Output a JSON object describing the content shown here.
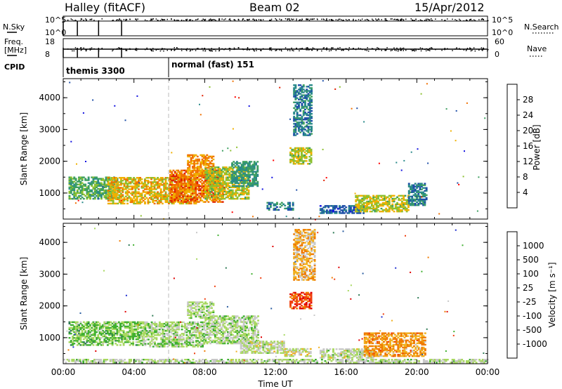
{
  "header": {
    "site": "Halley (fitACF)",
    "beam": "Beam 02",
    "date": "15/Apr/2012"
  },
  "status_panels": {
    "nsky": {
      "label": "N.Sky",
      "ticks_left": [
        "10^5",
        "10^0"
      ],
      "right_label": "N.Search",
      "ticks_right": [
        "10^5",
        "10^0"
      ]
    },
    "freq": {
      "label_top": "Freq.",
      "label_bottom": "[MHz]",
      "ticks_left": [
        "18",
        "8"
      ],
      "right_label": "Nave",
      "ticks_right": [
        "60",
        "0"
      ]
    },
    "cpid": {
      "label": "CPID",
      "modes": [
        {
          "text": "themis 3300",
          "start_hour": 0
        },
        {
          "text": "normal (fast) 151",
          "start_hour": 6
        }
      ]
    },
    "scan_markers_hours": [
      0,
      0.8,
      2.0,
      3.3
    ]
  },
  "colors": {
    "power_scale": [
      "#1010e0",
      "#1f4fa8",
      "#2a8a8a",
      "#3ea060",
      "#8cc030",
      "#f0b000",
      "#f07000",
      "#e02000",
      "#ff0000"
    ],
    "velocity_scale": [
      "#e00000",
      "#f04010",
      "#f07a00",
      "#f0b020",
      "#c8c8c8",
      "#a8d860",
      "#40b030",
      "#2d7a55",
      "#2a5ca0",
      "#1f2fd0"
    ]
  },
  "chart_data": [
    {
      "type": "heatmap",
      "name": "power",
      "xlabel": "",
      "ylabel": "Slant Range [km]",
      "xlim": [
        0,
        24
      ],
      "ylim": [
        180,
        4600
      ],
      "yticks": [
        "1000",
        "2000",
        "3000",
        "4000"
      ],
      "colorbar": {
        "label": "Power [dB]",
        "ticks": [
          "4",
          "8",
          "12",
          "16",
          "20",
          "24",
          "28"
        ],
        "range": [
          0,
          30
        ]
      },
      "regions": [
        {
          "t0": 0.3,
          "t1": 3.0,
          "r0": 800,
          "r1": 1500,
          "value": 12
        },
        {
          "t0": 2.5,
          "t1": 7.5,
          "r0": 650,
          "r1": 1500,
          "value": 18
        },
        {
          "t0": 6.0,
          "t1": 9.0,
          "r0": 700,
          "r1": 1700,
          "value": 22
        },
        {
          "t0": 7.0,
          "t1": 8.5,
          "r0": 1500,
          "r1": 2200,
          "value": 20
        },
        {
          "t0": 8.0,
          "t1": 10.5,
          "r0": 800,
          "r1": 1800,
          "value": 16
        },
        {
          "t0": 9.5,
          "t1": 11.0,
          "r0": 1200,
          "r1": 2000,
          "value": 10
        },
        {
          "t0": 11.5,
          "t1": 13.0,
          "r0": 450,
          "r1": 700,
          "value": 8
        },
        {
          "t0": 12.8,
          "t1": 14.0,
          "r0": 1900,
          "r1": 2400,
          "value": 16
        },
        {
          "t0": 13.0,
          "t1": 14.0,
          "r0": 2800,
          "r1": 4400,
          "value": 8
        },
        {
          "t0": 14.5,
          "t1": 17.0,
          "r0": 350,
          "r1": 600,
          "value": 6
        },
        {
          "t0": 16.5,
          "t1": 19.5,
          "r0": 400,
          "r1": 900,
          "value": 16
        },
        {
          "t0": 19.5,
          "t1": 20.5,
          "r0": 600,
          "r1": 1300,
          "value": 8
        }
      ]
    },
    {
      "type": "heatmap",
      "name": "velocity",
      "xlabel": "Time UT",
      "ylabel": "Slant Range [km]",
      "xlim": [
        0,
        24
      ],
      "ylim": [
        180,
        4600
      ],
      "xticks": [
        "00:00",
        "04:00",
        "08:00",
        "12:00",
        "16:00",
        "20:00",
        "00:00"
      ],
      "yticks": [
        "1000",
        "2000",
        "3000",
        "4000"
      ],
      "colorbar": {
        "label": "Velocity [m s⁻¹]",
        "ticks": [
          "1000",
          "500",
          "100",
          "25",
          "-25",
          "-100",
          "-500",
          "-1000"
        ],
        "range": [
          -1000,
          1000
        ]
      },
      "regions": [
        {
          "t0": 0.3,
          "t1": 4.5,
          "r0": 750,
          "r1": 1500,
          "value": 200
        },
        {
          "t0": 4.5,
          "t1": 8.0,
          "r0": 700,
          "r1": 1500,
          "value": 100
        },
        {
          "t0": 7.0,
          "t1": 8.5,
          "r0": 1600,
          "r1": 2100,
          "value": 50
        },
        {
          "t0": 8.0,
          "t1": 11.0,
          "r0": 800,
          "r1": 1700,
          "value": 60
        },
        {
          "t0": 10.0,
          "t1": 12.5,
          "r0": 500,
          "r1": 900,
          "value": 0
        },
        {
          "t0": 12.8,
          "t1": 14.0,
          "r0": 1900,
          "r1": 2400,
          "value": -700
        },
        {
          "t0": 13.0,
          "t1": 14.2,
          "r0": 2800,
          "r1": 4400,
          "value": -300
        },
        {
          "t0": 12.5,
          "t1": 14.0,
          "r0": 400,
          "r1": 650,
          "value": -60
        },
        {
          "t0": 14.5,
          "t1": 17.5,
          "r0": 350,
          "r1": 650,
          "value": 0
        },
        {
          "t0": 17.0,
          "t1": 20.5,
          "r0": 400,
          "r1": 1150,
          "value": -400
        },
        {
          "t0": 0.0,
          "t1": 24.0,
          "r0": 200,
          "r1": 300,
          "value": 20
        }
      ]
    }
  ]
}
